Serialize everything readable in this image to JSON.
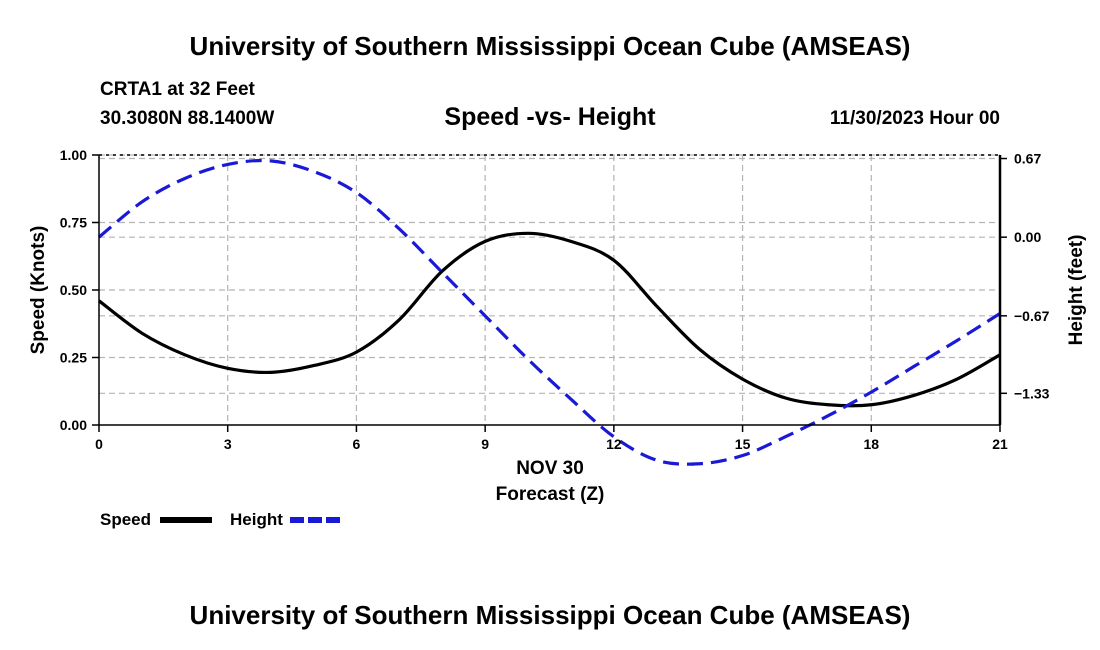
{
  "page": {
    "title_top": "University of Southern Mississippi Ocean Cube (AMSEAS)",
    "title_bottom": "University of Southern Mississippi Ocean Cube (AMSEAS)",
    "station": "CRTA1 at 32 Feet",
    "coords": "30.3080N  88.1400W",
    "datetime": "11/30/2023 Hour 00"
  },
  "colors": {
    "speed": "#000000",
    "height": "#1a1ad6",
    "grid": "#b4b4b4"
  },
  "chart_data": {
    "type": "line",
    "title": "Speed -vs- Height",
    "xlabel_date": "NOV 30",
    "xlabel": "Forecast (Z)",
    "ylabel": "Speed (Knots)",
    "y2label": "Height (feet)",
    "xlim": [
      0,
      21
    ],
    "ylim": [
      0,
      1
    ],
    "y2lim": [
      -1.6,
      0.7
    ],
    "x_ticks": [
      0,
      3,
      6,
      9,
      12,
      15,
      18,
      21
    ],
    "x_tick_labels": [
      "0",
      "3",
      "6",
      "9",
      "12",
      "15",
      "18",
      "21"
    ],
    "y_ticks": [
      0,
      0.25,
      0.5,
      0.75,
      1.0
    ],
    "y_tick_labels": [
      "0.00",
      "0.25",
      "0.50",
      "0.75",
      "1.00"
    ],
    "y2_ticks": [
      0.67,
      0.0,
      -0.67,
      -1.33
    ],
    "y2_tick_labels": [
      "0.67",
      "0.00",
      "−0.67",
      "−1.33"
    ],
    "grid": true,
    "legend_position": "bottom-left",
    "series": [
      {
        "name": "Speed",
        "axis": "left",
        "style": "solid",
        "x": [
          0,
          1,
          2,
          3,
          4,
          5,
          6,
          7,
          8,
          9,
          10,
          11,
          12,
          13,
          14,
          15,
          16,
          17,
          18,
          19,
          20,
          21
        ],
        "values": [
          0.46,
          0.34,
          0.26,
          0.21,
          0.195,
          0.22,
          0.27,
          0.39,
          0.57,
          0.68,
          0.71,
          0.68,
          0.61,
          0.44,
          0.28,
          0.17,
          0.1,
          0.075,
          0.075,
          0.11,
          0.17,
          0.26
        ]
      },
      {
        "name": "Height",
        "axis": "right",
        "style": "dashed",
        "x": [
          0,
          1,
          2,
          3,
          4,
          5,
          6,
          7,
          8,
          9,
          10,
          11,
          12,
          13,
          14,
          15,
          16,
          17,
          18,
          19,
          20,
          21
        ],
        "values": [
          0.0,
          0.3,
          0.5,
          0.62,
          0.65,
          0.56,
          0.38,
          0.07,
          -0.3,
          -0.67,
          -1.04,
          -1.38,
          -1.7,
          -1.9,
          -1.93,
          -1.86,
          -1.7,
          -1.52,
          -1.32,
          -1.1,
          -0.88,
          -0.65
        ]
      }
    ]
  }
}
